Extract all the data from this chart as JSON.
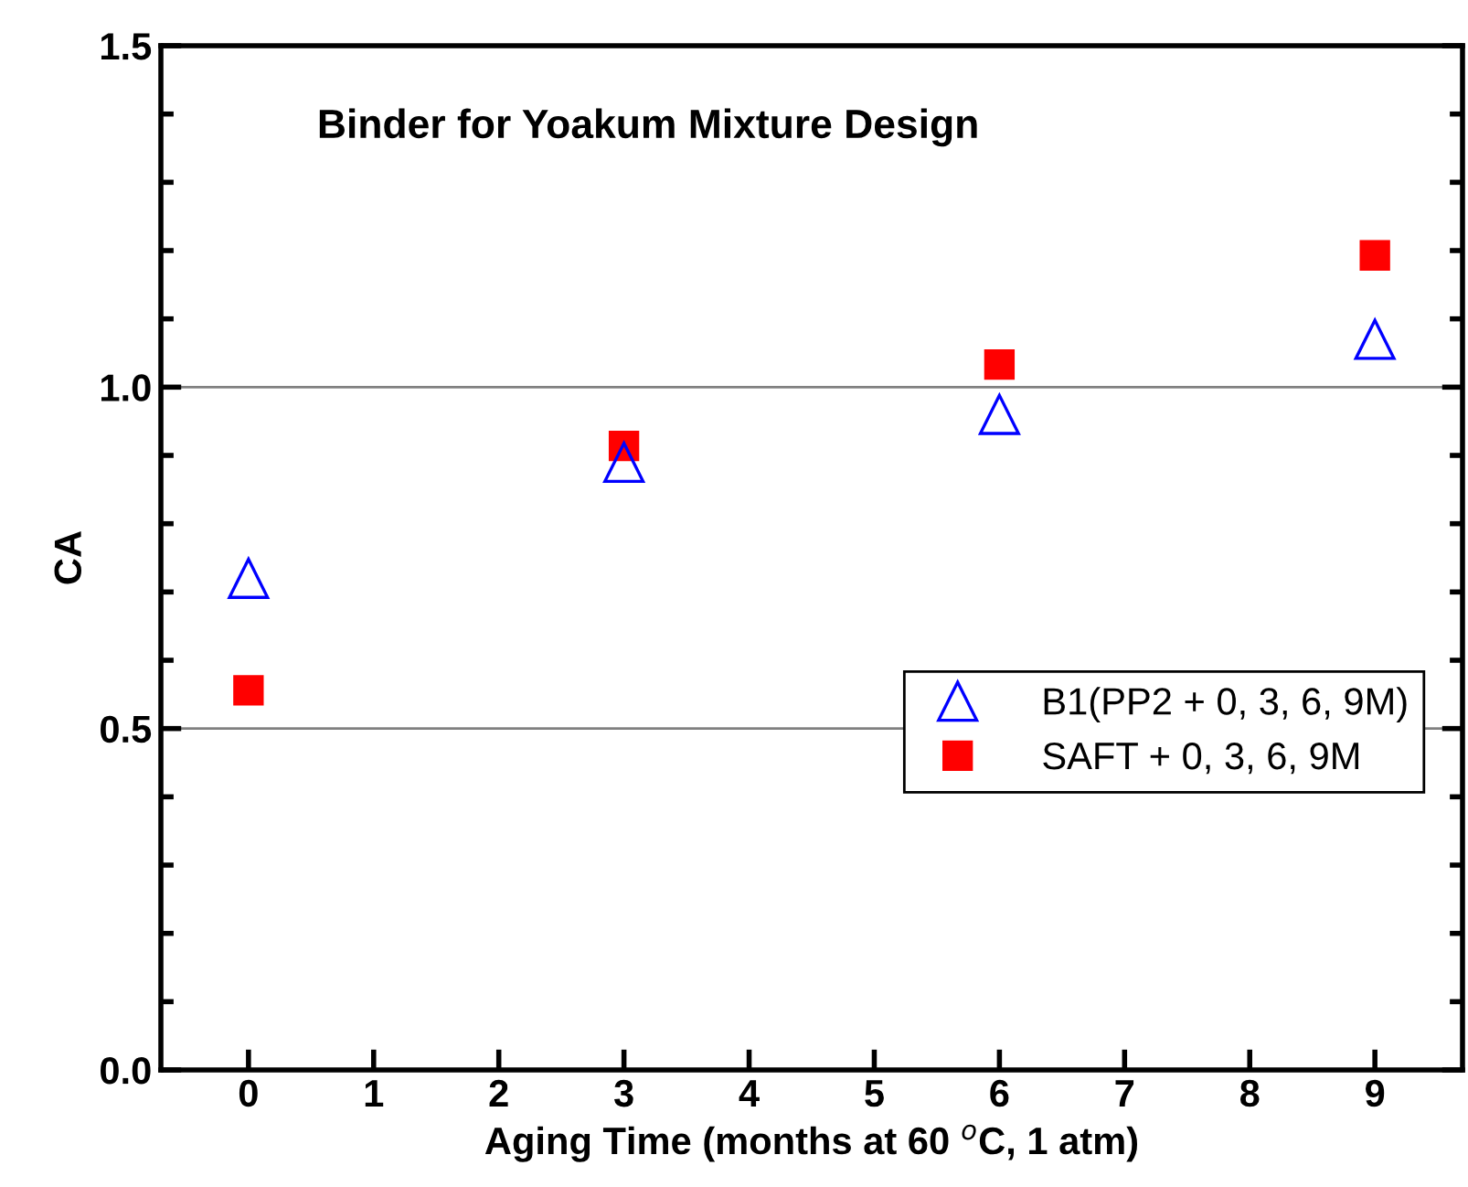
{
  "chart_data": {
    "type": "scatter",
    "title": "Binder for Yoakum Mixture Design",
    "xlabel": "Aging Time (months at 60 $^{o}$C, 1 atm)",
    "ylabel": "CA",
    "x": [
      0,
      3,
      6,
      9
    ],
    "series": [
      {
        "name": "B1(PP2 + 0, 3, 6, 9M)",
        "color": "#0000ff",
        "marker": "triangle",
        "values": [
          0.72,
          0.89,
          0.96,
          1.07
        ]
      },
      {
        "name": "SAFT + 0, 3, 6, 9M",
        "color": "#ff0000",
        "marker": "square",
        "values": [
          0.556,
          0.914,
          1.033,
          1.193
        ]
      }
    ],
    "xlim": [
      -0.7,
      9.7
    ],
    "xticks": [
      0,
      1,
      2,
      3,
      4,
      5,
      6,
      7,
      8,
      9
    ],
    "ylim": [
      0,
      1.5
    ],
    "yticks": [
      {
        "value": 0,
        "label": "0.0"
      },
      {
        "value": 0.5,
        "label": "0.5"
      },
      {
        "value": 1,
        "label": "1.0"
      },
      {
        "value": 1.5,
        "label": "1.5"
      }
    ],
    "grid": "y",
    "legend": "right"
  }
}
